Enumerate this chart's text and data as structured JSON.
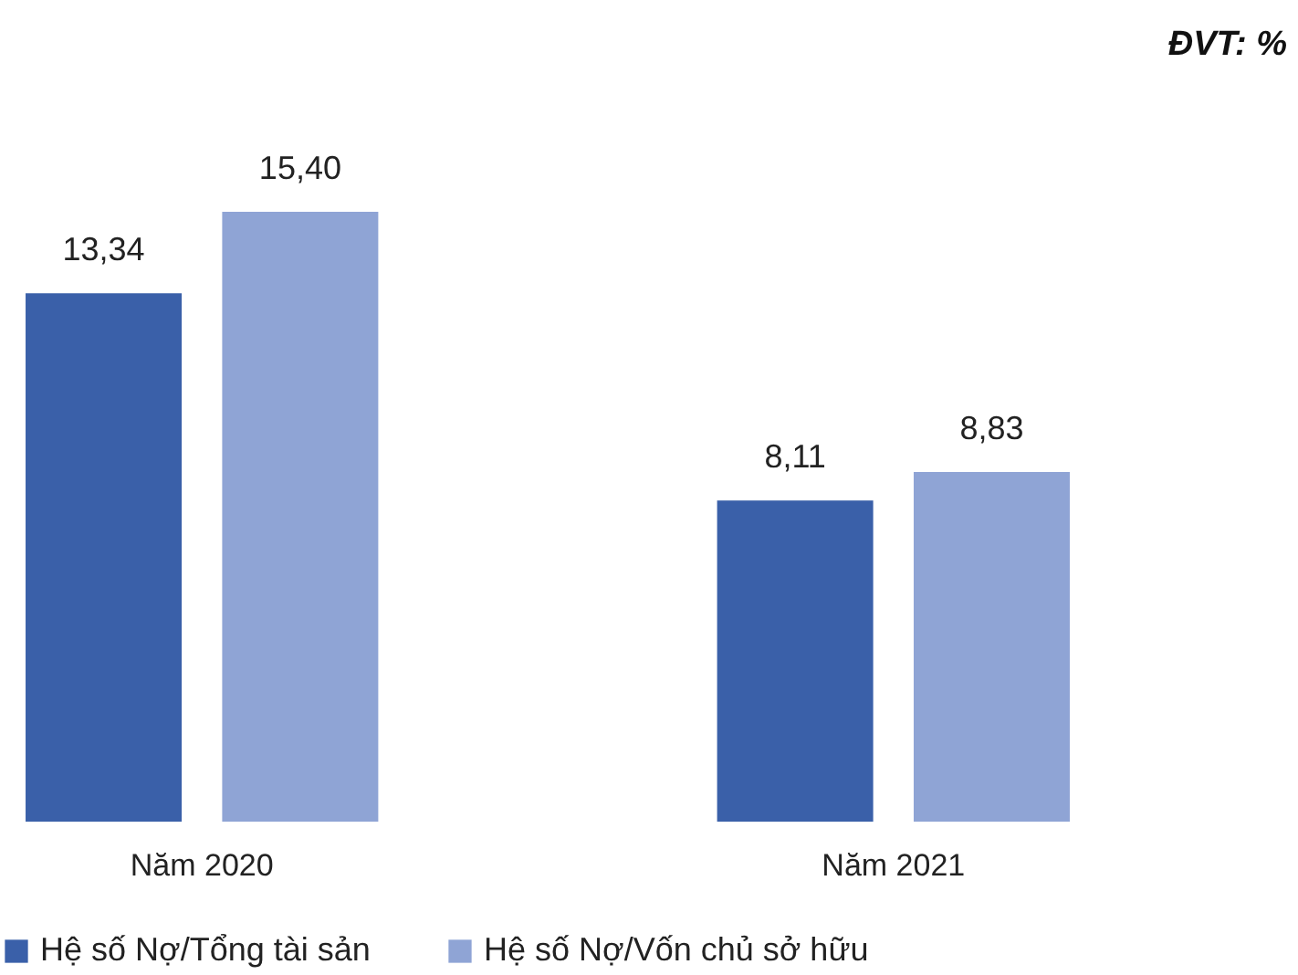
{
  "chart_data": {
    "type": "bar",
    "categories": [
      "Năm 2020",
      "Năm 2021"
    ],
    "series": [
      {
        "name": "Hệ số Nợ/Tổng tài sản",
        "color": "#3a60a9",
        "values": [
          13.34,
          8.11
        ],
        "value_labels": [
          "13,34",
          "8,11"
        ]
      },
      {
        "name": "Hệ số Nợ/Vốn chủ sở hữu",
        "color": "#8fa4d5",
        "values": [
          15.4,
          8.83
        ],
        "value_labels": [
          "15,40",
          "8,83"
        ]
      }
    ],
    "annotations": [
      "ĐVT: %"
    ],
    "legend": "bottom",
    "grid": false
  }
}
